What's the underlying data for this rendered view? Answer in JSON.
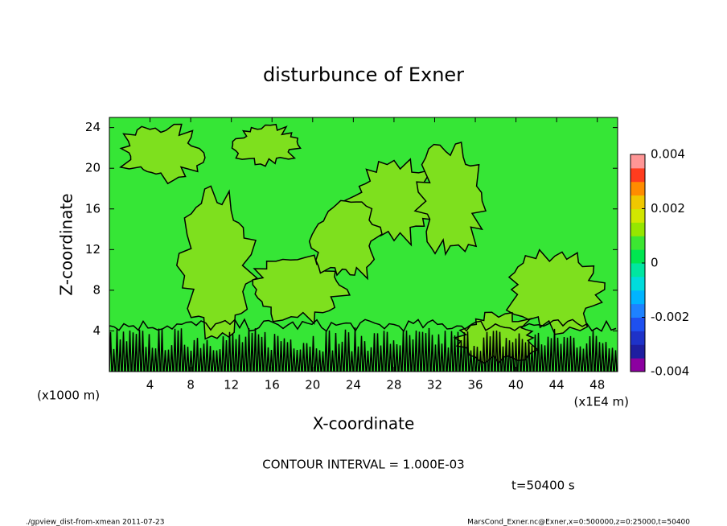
{
  "chart_data": {
    "type": "contour",
    "title": "disturbunce of Exner",
    "xlabel": "X-coordinate",
    "ylabel": "Z-coordinate",
    "x_unit": "(x1000 m)",
    "x_unit_right": "(x1E4 m)",
    "xlim": [
      0,
      50
    ],
    "xticks": [
      4,
      8,
      12,
      16,
      20,
      24,
      28,
      32,
      36,
      40,
      44,
      48
    ],
    "ylim": [
      0,
      25
    ],
    "yticks": [
      4,
      8,
      12,
      16,
      20,
      24
    ],
    "colorbar": {
      "lim": [
        -0.004,
        0.004
      ],
      "ticks": [
        0.004,
        0.002,
        0,
        -0.002,
        -0.004
      ],
      "colors": [
        "#8c00a0",
        "#1e1ea0",
        "#1e32c8",
        "#1e50f0",
        "#1e82ff",
        "#00b4ff",
        "#00dcdc",
        "#00e6a0",
        "#00e650",
        "#3ce632",
        "#96e600",
        "#d2e600",
        "#f0c800",
        "#ff8c00",
        "#ff3c1e",
        "#ff9696"
      ]
    },
    "field_colors": [
      "#36e636",
      "#7ee01e"
    ],
    "contour_interval": "CONTOUR INTERVAL = 1.000E-03",
    "time_label": "t=50400 s",
    "footer_left": "./gpview_dist-from-xmean  2011-07-23",
    "footer_right": "MarsCond_Exner.nc@Exner,x=0:500000,z=0:25000,t=50400"
  }
}
